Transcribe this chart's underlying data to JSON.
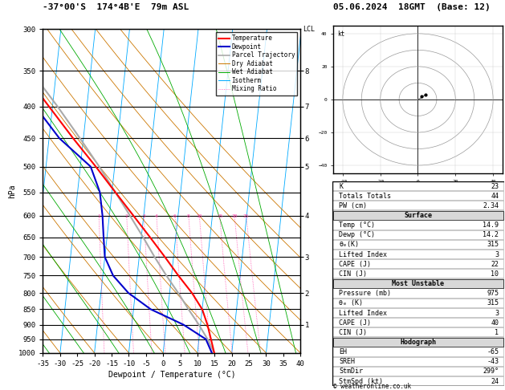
{
  "title_left": "-37°00'S  174°4B'E  79m ASL",
  "title_right": "05.06.2024  18GMT  (Base: 12)",
  "xlabel": "Dewpoint / Temperature (°C)",
  "pressure_levels": [
    300,
    350,
    400,
    450,
    500,
    550,
    600,
    650,
    700,
    750,
    800,
    850,
    900,
    950,
    1000
  ],
  "temp_min": -35,
  "temp_max": 40,
  "skew_factor": 8.5,
  "temperature_pressure": [
    1000,
    950,
    900,
    850,
    800,
    750,
    700,
    650,
    600,
    550,
    500,
    450,
    400,
    350,
    300
  ],
  "temperature_temp": [
    14.9,
    13.5,
    12.0,
    10.0,
    6.5,
    2.0,
    -2.5,
    -7.5,
    -13.0,
    -19.0,
    -25.5,
    -33.0,
    -41.0,
    -50.0,
    -58.5
  ],
  "dewpoint_pressure": [
    1000,
    950,
    900,
    850,
    800,
    750,
    700,
    650,
    600,
    550,
    500,
    450,
    400,
    350,
    300
  ],
  "dewpoint_temp": [
    14.2,
    12.0,
    5.0,
    -5.0,
    -12.0,
    -17.0,
    -20.0,
    -21.0,
    -22.0,
    -23.5,
    -27.0,
    -37.0,
    -45.0,
    -54.0,
    -63.0
  ],
  "parcel_pressure": [
    1000,
    950,
    900,
    850,
    800,
    750,
    700,
    650,
    600,
    550,
    500,
    450,
    400,
    350,
    300
  ],
  "parcel_temp": [
    14.9,
    12.5,
    9.5,
    6.0,
    2.5,
    -1.5,
    -5.5,
    -9.5,
    -14.0,
    -19.0,
    -24.5,
    -31.0,
    -38.5,
    -47.5,
    -57.0
  ],
  "col_temperature": "#ff0000",
  "col_dewpoint": "#0000cc",
  "col_parcel": "#aaaaaa",
  "col_dry_adiabat": "#cc7700",
  "col_wet_adiabat": "#00aa00",
  "col_isotherm": "#00aaff",
  "col_mixing_ratio": "#ff44aa",
  "mixing_ratio_values": [
    1,
    2,
    3,
    4,
    6,
    8,
    10,
    15,
    20,
    25
  ],
  "km_pressures": [
    350,
    400,
    450,
    500,
    600,
    700,
    800,
    900
  ],
  "km_labels": [
    "8",
    "7",
    "6",
    "5",
    "4",
    "3",
    "2",
    "1"
  ],
  "lcl_pressure": 1000,
  "K": 23,
  "TT": 44,
  "PW": "2.34",
  "surf_temp": "14.9",
  "surf_dewp": "14.2",
  "surf_theta_e": "315",
  "surf_li": "3",
  "surf_cape": "22",
  "surf_cin": "10",
  "mu_pressure": "975",
  "mu_theta_e": "315",
  "mu_li": "3",
  "mu_cape": "40",
  "mu_cin": "1",
  "hodo_EH": "-65",
  "hodo_SREH": "-43",
  "hodo_StmDir": "299°",
  "hodo_StmSpd": "24"
}
